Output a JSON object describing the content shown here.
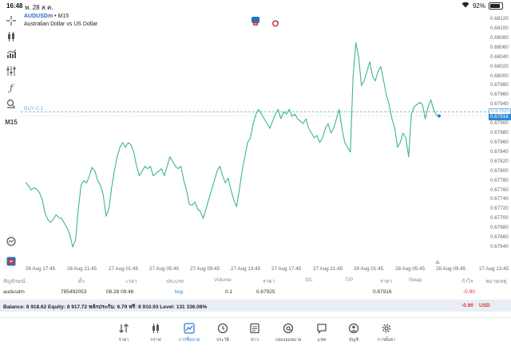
{
  "status": {
    "time": "16:48",
    "date": "พ. 28 ส.ค.",
    "battery": "92%"
  },
  "symbol": {
    "name": "AUDUSDm",
    "timeframe": "• M15",
    "description": "Australian Dollar vs US Dollar"
  },
  "timeframe_label": "M15",
  "position_line": {
    "label": "BUY 0.1",
    "price": "0.67925"
  },
  "current_price": "0.67916",
  "y_ticks": [
    "0.68120",
    "0.68100",
    "0.68080",
    "0.68060",
    "0.68040",
    "0.68020",
    "0.68000",
    "0.67980",
    "0.67960",
    "0.67940",
    "0.67920",
    "0.67900",
    "0.67880",
    "0.67860",
    "0.67840",
    "0.67820",
    "0.67800",
    "0.67780",
    "0.67760",
    "0.67740",
    "0.67720",
    "0.67700",
    "0.67680",
    "0.67660",
    "0.67640"
  ],
  "x_ticks": [
    "26 Aug 17:45",
    "26 Aug 21:45",
    "27 Aug 01:45",
    "27 Aug 05:45",
    "27 Aug 09:45",
    "27 Aug 13:45",
    "27 Aug 17:45",
    "27 Aug 21:45",
    "28 Aug 01:45",
    "28 Aug 05:45",
    "28 Aug 09:45",
    "27 Aug 13:45"
  ],
  "chart_data": {
    "type": "line",
    "series": [
      {
        "values": [
          0.67776,
          0.6777,
          0.6776,
          0.67765,
          0.67762,
          0.67755,
          0.6774,
          0.67712,
          0.67698,
          0.67692,
          0.67698,
          0.67708,
          0.67702,
          0.677,
          0.6769,
          0.6768,
          0.67665,
          0.6764,
          0.67655,
          0.6772,
          0.6777,
          0.6778,
          0.67775,
          0.6779,
          0.67808,
          0.678,
          0.6778,
          0.6777,
          0.6775,
          0.67705,
          0.6772,
          0.67765,
          0.678,
          0.6783,
          0.6785,
          0.6786,
          0.6785,
          0.6786,
          0.67855,
          0.6784,
          0.6781,
          0.6779,
          0.678,
          0.6781,
          0.67805,
          0.6781,
          0.6779,
          0.67795,
          0.678,
          0.67805,
          0.6779,
          0.6781,
          0.6783,
          0.6782,
          0.6781,
          0.67805,
          0.6781,
          0.6778,
          0.6776,
          0.6773,
          0.67728,
          0.67735,
          0.6772,
          0.67715,
          0.677,
          0.6772,
          0.6774,
          0.6776,
          0.6778,
          0.678,
          0.6781,
          0.6779,
          0.67775,
          0.67785,
          0.6776,
          0.6774,
          0.67725,
          0.6776,
          0.678,
          0.6783,
          0.6786,
          0.6787,
          0.679,
          0.6792,
          0.6793,
          0.6792,
          0.6791,
          0.679,
          0.6789,
          0.67905,
          0.6792,
          0.6793,
          0.6791,
          0.67925,
          0.6792,
          0.6793,
          0.67915,
          0.6792,
          0.6791,
          0.67905,
          0.679,
          0.6791,
          0.6789,
          0.6788,
          0.6787,
          0.67875,
          0.6786,
          0.6787,
          0.6789,
          0.679,
          0.6788,
          0.6789,
          0.6791,
          0.6793,
          0.6789,
          0.6786,
          0.6785,
          0.6784,
          0.68,
          0.6807,
          0.6804,
          0.6798,
          0.6799,
          0.6801,
          0.6803,
          0.68,
          0.6799,
          0.6801,
          0.6802,
          0.6799,
          0.6796,
          0.6794,
          0.6791,
          0.6789,
          0.6785,
          0.6786,
          0.6788,
          0.6787,
          0.6783,
          0.6792,
          0.67935,
          0.6794,
          0.67945,
          0.6794,
          0.6791,
          0.67935,
          0.6795,
          0.6793,
          0.67918,
          0.67916
        ],
        "color": "#3cb883"
      }
    ],
    "ylim": [
      0.6763,
      0.68125
    ],
    "grid": false,
    "line_color": "#3cb883",
    "position_line_color": "#7ab0d8"
  },
  "table": {
    "headers": [
      "สัญลักษณ์",
      "ตั๋ว",
      "เวลา",
      "ประเภท",
      "Volume",
      "ราคา",
      "S/L",
      "T/P",
      "ราคา",
      "Swap",
      "กำไร",
      "หมายเหตุ"
    ],
    "row": {
      "symbol": "audusdm",
      "ticket": "785492053",
      "time": "08.28 09:48",
      "type": "buy",
      "volume": "0.1",
      "open_price": "0.67925",
      "price": "0.67916",
      "profit": "-0.90"
    }
  },
  "balance": {
    "text": "Balance: 8 918.62 Equity: 8 917.72 หลักประกัน: 6.79 ฟรี: 8 910.93 Level: 131 336.08%",
    "profit": "-0.90",
    "currency": "USD"
  },
  "nav": [
    {
      "label": "ราคา",
      "icon": "quotes-icon"
    },
    {
      "label": "กราฟ",
      "icon": "chart-icon"
    },
    {
      "label": "การซื้อขาย",
      "icon": "trade-icon"
    },
    {
      "label": "ประวัติ",
      "icon": "history-icon"
    },
    {
      "label": "ข่าว",
      "icon": "news-icon"
    },
    {
      "label": "กล่องจดหมาย",
      "icon": "mailbox-icon"
    },
    {
      "label": "แชท",
      "icon": "chat-icon"
    },
    {
      "label": "บัญชี",
      "icon": "account-icon"
    },
    {
      "label": "การตั้งค่า",
      "icon": "settings-icon"
    }
  ],
  "colors": {
    "accent": "#2d7dd2",
    "loss": "#e0322c",
    "balance_bg": "#e9eef5"
  }
}
